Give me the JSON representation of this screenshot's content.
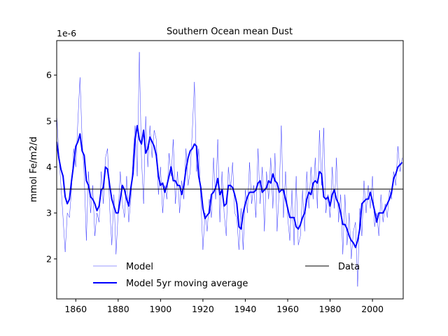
{
  "chart_data": {
    "type": "line",
    "title": "Southern Ocean  mean Dust",
    "y_label": "mmol Fe/m2/d",
    "y_offset_label": "1e-6",
    "x": [
      1851,
      1852,
      1853,
      1854,
      1855,
      1856,
      1857,
      1858,
      1859,
      1860,
      1861,
      1862,
      1863,
      1864,
      1865,
      1866,
      1867,
      1868,
      1869,
      1870,
      1871,
      1872,
      1873,
      1874,
      1875,
      1876,
      1877,
      1878,
      1879,
      1880,
      1881,
      1882,
      1883,
      1884,
      1885,
      1886,
      1887,
      1888,
      1889,
      1890,
      1891,
      1892,
      1893,
      1894,
      1895,
      1896,
      1897,
      1898,
      1899,
      1900,
      1901,
      1902,
      1903,
      1904,
      1905,
      1906,
      1907,
      1908,
      1909,
      1910,
      1911,
      1912,
      1913,
      1914,
      1915,
      1916,
      1917,
      1918,
      1919,
      1920,
      1921,
      1922,
      1923,
      1924,
      1925,
      1926,
      1927,
      1928,
      1929,
      1930,
      1931,
      1932,
      1933,
      1934,
      1935,
      1936,
      1937,
      1938,
      1939,
      1940,
      1941,
      1942,
      1943,
      1944,
      1945,
      1946,
      1947,
      1948,
      1949,
      1950,
      1951,
      1952,
      1953,
      1954,
      1955,
      1956,
      1957,
      1958,
      1959,
      1960,
      1961,
      1962,
      1963,
      1964,
      1965,
      1966,
      1967,
      1968,
      1969,
      1970,
      1971,
      1972,
      1973,
      1974,
      1975,
      1976,
      1977,
      1978,
      1979,
      1980,
      1981,
      1982,
      1983,
      1984,
      1985,
      1986,
      1987,
      1988,
      1989,
      1990,
      1991,
      1992,
      1993,
      1994,
      1995,
      1996,
      1997,
      1998,
      1999,
      2000,
      2001,
      2002,
      2003,
      2004,
      2005,
      2006,
      2007,
      2008,
      2009,
      2010,
      2011,
      2012,
      2013,
      2014
    ],
    "series": [
      {
        "name": "Model",
        "color": "#0000ff",
        "linewidth": 0.4,
        "values": [
          5.15,
          4.3,
          3.6,
          2.9,
          2.15,
          3.0,
          2.9,
          3.5,
          4.4,
          4.0,
          5.0,
          5.95,
          4.6,
          3.8,
          2.4,
          3.9,
          3.0,
          3.6,
          2.5,
          3.0,
          2.8,
          3.9,
          3.2,
          4.2,
          4.4,
          3.1,
          2.3,
          3.4,
          2.1,
          3.0,
          3.9,
          3.2,
          2.9,
          3.8,
          2.8,
          3.3,
          4.2,
          4.9,
          3.8,
          6.5,
          4.2,
          3.2,
          5.1,
          4.0,
          4.9,
          4.2,
          4.8,
          4.6,
          3.4,
          4.0,
          3.0,
          3.6,
          3.3,
          4.3,
          3.8,
          4.6,
          3.2,
          3.9,
          3.0,
          3.7,
          3.3,
          4.4,
          3.6,
          3.9,
          4.8,
          5.85,
          3.9,
          4.4,
          3.3,
          2.2,
          3.0,
          2.6,
          3.3,
          2.9,
          4.2,
          3.3,
          4.6,
          2.8,
          3.9,
          3.0,
          2.5,
          4.0,
          3.5,
          4.1,
          3.0,
          2.9,
          2.2,
          3.1,
          2.2,
          3.5,
          3.0,
          4.1,
          3.2,
          3.6,
          2.9,
          4.4,
          3.2,
          4.0,
          2.6,
          3.9,
          3.3,
          4.2,
          3.1,
          4.3,
          2.6,
          3.5,
          4.9,
          2.9,
          3.9,
          2.9,
          2.4,
          3.5,
          2.3,
          3.8,
          2.3,
          2.5,
          3.5,
          2.6,
          3.9,
          3.1,
          4.0,
          3.3,
          4.2,
          3.1,
          4.8,
          3.6,
          4.85,
          3.0,
          3.4,
          2.9,
          4.0,
          3.1,
          4.2,
          2.8,
          3.4,
          2.1,
          3.4,
          2.3,
          3.0,
          2.0,
          2.6,
          2.8,
          1.4,
          3.1,
          2.5,
          3.7,
          3.0,
          3.6,
          3.1,
          3.8,
          2.7,
          3.0,
          2.5,
          3.4,
          2.8,
          3.2,
          2.9,
          3.5,
          3.3,
          3.9,
          3.6,
          4.45,
          3.9,
          4.2
        ]
      },
      {
        "name": "Model 5yr moving average",
        "color": "#0000ff",
        "linewidth": 2,
        "values": [
          4.55,
          4.2,
          3.95,
          3.8,
          3.35,
          3.2,
          3.3,
          3.7,
          4.05,
          4.45,
          4.55,
          4.72,
          4.35,
          4.25,
          3.7,
          3.6,
          3.35,
          3.3,
          3.2,
          3.05,
          3.15,
          3.5,
          3.55,
          4.0,
          3.95,
          3.6,
          3.3,
          3.15,
          3.0,
          3.0,
          3.3,
          3.6,
          3.5,
          3.3,
          3.15,
          3.55,
          3.85,
          4.6,
          4.9,
          4.6,
          4.5,
          4.8,
          4.3,
          4.4,
          4.65,
          4.55,
          4.45,
          4.25,
          3.8,
          3.6,
          3.65,
          3.45,
          3.6,
          3.8,
          4.0,
          3.7,
          3.7,
          3.6,
          3.6,
          3.4,
          3.6,
          3.95,
          4.2,
          4.35,
          4.4,
          4.5,
          4.45,
          3.8,
          3.55,
          3.1,
          2.88,
          2.95,
          3.0,
          3.4,
          3.45,
          3.55,
          3.75,
          3.4,
          3.5,
          3.15,
          3.2,
          3.6,
          3.6,
          3.55,
          3.4,
          3.2,
          2.7,
          2.65,
          3.0,
          3.2,
          3.35,
          3.45,
          3.45,
          3.45,
          3.5,
          3.65,
          3.7,
          3.45,
          3.5,
          3.55,
          3.7,
          3.65,
          3.85,
          3.7,
          3.65,
          3.45,
          3.5,
          3.5,
          3.3,
          3.1,
          2.9,
          2.9,
          2.9,
          2.7,
          2.65,
          2.75,
          2.9,
          3.0,
          3.3,
          3.45,
          3.4,
          3.65,
          3.7,
          3.65,
          3.9,
          3.85,
          3.35,
          3.3,
          3.35,
          3.15,
          3.4,
          3.5,
          3.3,
          3.2,
          3.0,
          2.75,
          2.75,
          2.65,
          2.5,
          2.4,
          2.35,
          2.25,
          2.4,
          2.65,
          3.2,
          3.25,
          3.3,
          3.3,
          3.45,
          3.25,
          3.05,
          2.8,
          3.0,
          3.0,
          3.0,
          3.1,
          3.2,
          3.3,
          3.45,
          3.75,
          3.85,
          4.0,
          4.05,
          4.1
        ]
      }
    ],
    "reference_line": {
      "name": "Data",
      "value": 3.52,
      "color": "#000000"
    },
    "xlim": [
      1851,
      2014.5
    ],
    "ylim": [
      1.13,
      6.75
    ],
    "xticks": [
      1860,
      1880,
      1900,
      1920,
      1940,
      1960,
      1980,
      2000
    ],
    "yticks": [
      2,
      3,
      4,
      5,
      6
    ]
  }
}
